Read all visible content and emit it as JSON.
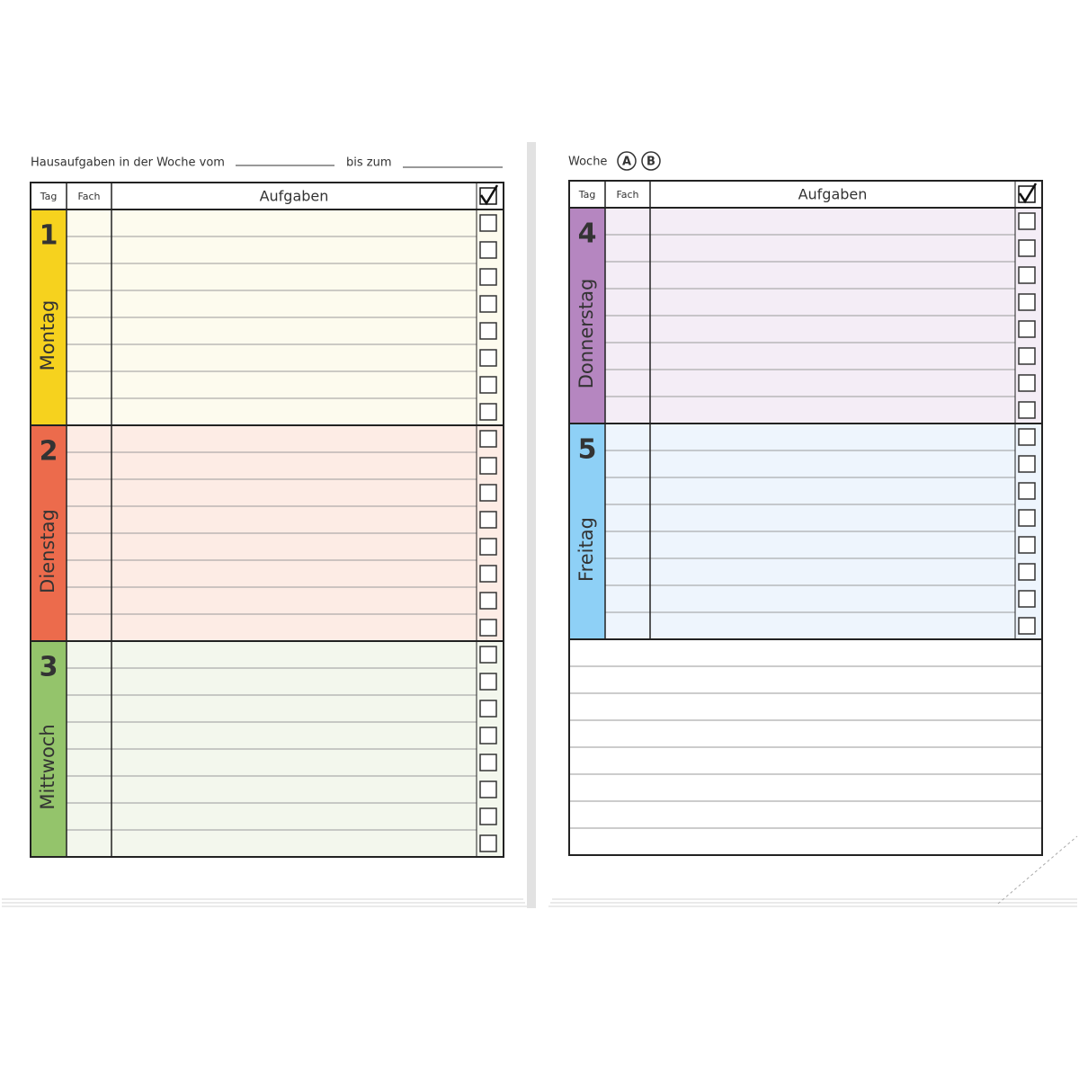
{
  "left_page": {
    "header": {
      "label": "Hausaufgaben in der Woche vom",
      "to": "bis zum"
    },
    "table": {
      "columns": [
        "Tag",
        "Fach",
        "Aufgaben"
      ],
      "days": [
        {
          "number": "1",
          "name": "Montag"
        },
        {
          "number": "2",
          "name": "Dienstag"
        },
        {
          "number": "3",
          "name": "Mittwoch"
        }
      ]
    }
  },
  "right_page": {
    "header": {
      "label": "Woche",
      "options": [
        "A",
        "B"
      ]
    },
    "table": {
      "columns": [
        "Tag",
        "Fach",
        "Aufgaben"
      ],
      "days": [
        {
          "number": "4",
          "name": "Donnerstag"
        },
        {
          "number": "5",
          "name": "Freitag"
        }
      ]
    }
  }
}
